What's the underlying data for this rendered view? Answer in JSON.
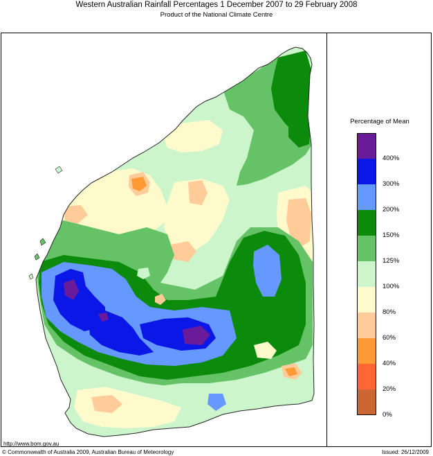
{
  "header": {
    "title": "Western Australian Rainfall Percentages 1 December 2007 to 29 February 2008",
    "subtitle": "Product of the National Climate Centre"
  },
  "legend": {
    "title": "Percentage of Mean",
    "classes": [
      {
        "label": "400%",
        "color": "#6a1b9a"
      },
      {
        "label": "300%",
        "color": "#0b17e6"
      },
      {
        "label": "200%",
        "color": "#6699ff"
      },
      {
        "label": "150%",
        "color": "#0b8a0b"
      },
      {
        "label": "125%",
        "color": "#66c266"
      },
      {
        "label": "100%",
        "color": "#ccf5cc"
      },
      {
        "label": "80%",
        "color": "#fffacc"
      },
      {
        "label": "60%",
        "color": "#ffcc99"
      },
      {
        "label": "40%",
        "color": "#ff9933"
      },
      {
        "label": "20%",
        "color": "#ff6633"
      },
      {
        "label": "0%",
        "color": "#cc6633"
      }
    ]
  },
  "footer": {
    "url": "http://www.bom.gov.au",
    "copyright": "© Commonwealth of Australia 2009, Australian Bureau of Meteorology",
    "issued": "Issued: 26/12/2009"
  }
}
